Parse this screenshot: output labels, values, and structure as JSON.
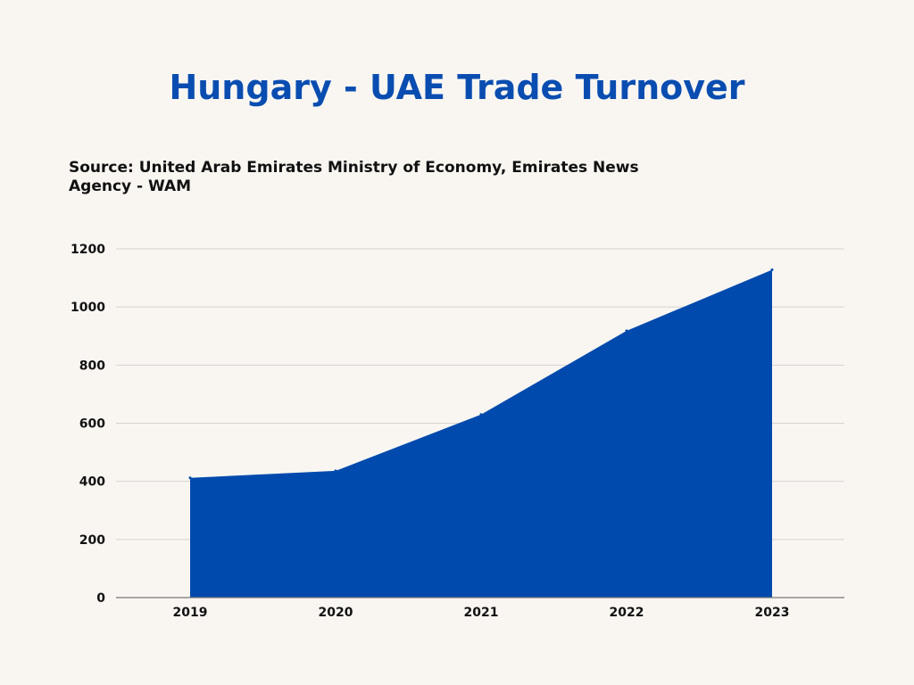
{
  "title": "Hungary - UAE Trade Turnover",
  "source": "Source: United Arab Emirates Ministry of Economy, Emirates News Agency - WAM",
  "colors": {
    "background": "#f9f6f2",
    "title": "#0a4db1",
    "area": "#004aad",
    "grid": "#d6d3cf",
    "axis": "#777777"
  },
  "chart_data": {
    "type": "area",
    "categories": [
      "2019",
      "2020",
      "2021",
      "2022",
      "2023"
    ],
    "values": [
      412,
      436,
      630,
      918,
      1128
    ],
    "yticks": [
      "0",
      "200",
      "400",
      "600",
      "800",
      "1000",
      "1200"
    ],
    "ylim": [
      0,
      1200
    ],
    "grid": true,
    "legend": "none"
  }
}
